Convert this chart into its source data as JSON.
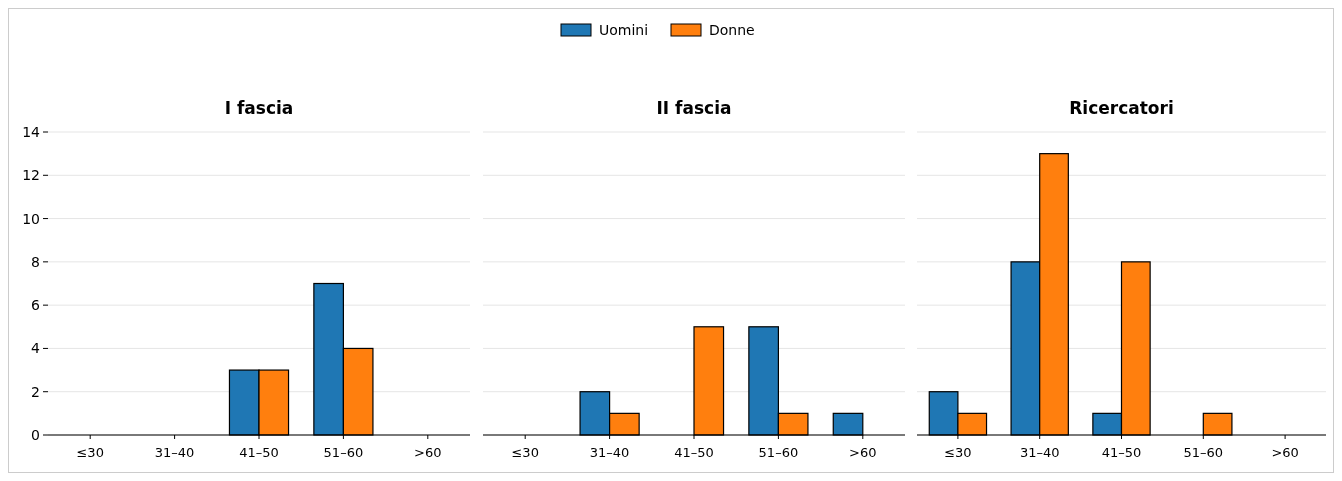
{
  "chart_data": [
    {
      "type": "bar",
      "title": "I fascia",
      "categories": [
        "≤30",
        "31–40",
        "41–50",
        "51–60",
        ">60"
      ],
      "series": [
        {
          "name": "Uomini",
          "color": "#1f77b4",
          "values": [
            0,
            0,
            3,
            7,
            0
          ]
        },
        {
          "name": "Donne",
          "color": "#ff7f0e",
          "values": [
            0,
            0,
            3,
            4,
            0
          ]
        }
      ],
      "ylim": [
        0,
        14
      ],
      "yticks": [
        0,
        2,
        4,
        6,
        8,
        10,
        12,
        14
      ],
      "grid": "y",
      "legend": "top"
    },
    {
      "type": "bar",
      "title": "II fascia",
      "categories": [
        "≤30",
        "31–40",
        "41–50",
        "51–60",
        ">60"
      ],
      "series": [
        {
          "color": "#1f77b4",
          "values": [
            0,
            2,
            0,
            5,
            1
          ]
        },
        {
          "color": "#ff7f0e",
          "values": [
            0,
            1,
            5,
            1,
            0
          ]
        }
      ],
      "ylim": [
        0,
        14
      ],
      "yticks": [
        0,
        2,
        4,
        6,
        8,
        10,
        12,
        14
      ],
      "grid": "y",
      "tick_labels": "x"
    },
    {
      "type": "bar",
      "title": "Ricercatori",
      "categories": [
        "≤30",
        "31–40",
        "41–50",
        "51–60",
        ">60"
      ],
      "series": [
        {
          "color": "#1f77b4",
          "values": [
            2,
            8,
            1,
            0,
            0
          ]
        },
        {
          "color": "#ff7f0e",
          "values": [
            1,
            13,
            8,
            1,
            0
          ]
        }
      ],
      "ylim": [
        0,
        14
      ],
      "yticks": [
        0,
        2,
        4,
        6,
        8,
        10,
        12,
        14
      ],
      "grid": "y",
      "tick_labels": "x"
    }
  ]
}
